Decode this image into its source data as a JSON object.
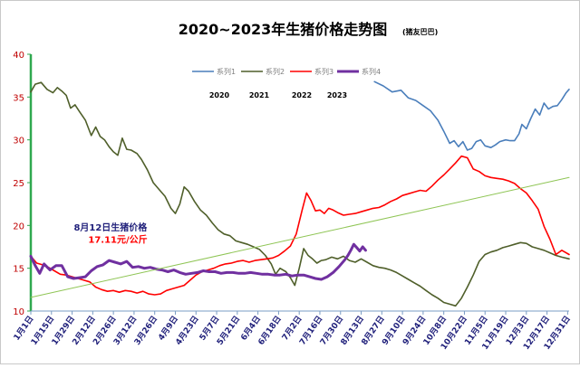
{
  "chart_data": {
    "type": "line",
    "title": "2020~2023年生猪价格走势图",
    "subtitle": "(猪友巴巴)",
    "xlabel": "",
    "ylabel": "",
    "ylim": [
      10,
      40
    ],
    "yticks": [
      "10",
      "15",
      "20",
      "25",
      "30",
      "35",
      "40"
    ],
    "x_unit": "day of year (1 = 1月1日)",
    "xlim": [
      1,
      366
    ],
    "xtick_labels": [
      {
        "label": "1月1日",
        "day": 1
      },
      {
        "label": "1月15日",
        "day": 15
      },
      {
        "label": "1月29日",
        "day": 29
      },
      {
        "label": "2月12日",
        "day": 43
      },
      {
        "label": "2月26日",
        "day": 57
      },
      {
        "label": "3月12日",
        "day": 71
      },
      {
        "label": "3月26日",
        "day": 85
      },
      {
        "label": "4月9日",
        "day": 99
      },
      {
        "label": "4月23日",
        "day": 113
      },
      {
        "label": "5月7日",
        "day": 127
      },
      {
        "label": "5月21日",
        "day": 141
      },
      {
        "label": "6月4日",
        "day": 155
      },
      {
        "label": "6月18日",
        "day": 169
      },
      {
        "label": "7月2日",
        "day": 183
      },
      {
        "label": "7月16日",
        "day": 197
      },
      {
        "label": "7月30日",
        "day": 211
      },
      {
        "label": "8月13日",
        "day": 225
      },
      {
        "label": "8月27日",
        "day": 239
      },
      {
        "label": "9月10日",
        "day": 253
      },
      {
        "label": "9月24日",
        "day": 267
      },
      {
        "label": "10月8日",
        "day": 281
      },
      {
        "label": "10月22日",
        "day": 295
      },
      {
        "label": "11月5日",
        "day": 309
      },
      {
        "label": "11月19日",
        "day": 323
      },
      {
        "label": "12月3日",
        "day": 337
      },
      {
        "label": "12月17日",
        "day": 351
      },
      {
        "label": "12月31日",
        "day": 365
      }
    ],
    "grid": false,
    "legend_position": "top-right",
    "legend_years": [
      "2020",
      "2021",
      "2022",
      "2023"
    ],
    "series": [
      {
        "name": "系列1",
        "color": "#4a7ebb",
        "width": 1.6,
        "x": [
          234,
          240,
          246,
          252,
          257,
          262,
          267,
          272,
          277,
          281,
          285,
          288,
          291,
          294,
          297,
          300,
          303,
          306,
          309,
          313,
          316,
          319,
          323,
          326,
          329,
          332,
          334,
          337,
          340,
          343,
          346,
          349,
          352,
          355,
          358,
          361,
          364,
          366
        ],
        "y": [
          36.8,
          36.3,
          35.6,
          35.8,
          34.9,
          34.6,
          34.0,
          33.4,
          32.3,
          31.0,
          29.6,
          29.9,
          29.2,
          29.8,
          28.8,
          29.0,
          29.8,
          30.0,
          29.3,
          29.1,
          29.4,
          29.8,
          30.0,
          29.9,
          29.9,
          30.7,
          31.8,
          31.3,
          32.5,
          33.6,
          32.9,
          34.3,
          33.6,
          33.9,
          34.0,
          34.7,
          35.5,
          35.9
        ]
      },
      {
        "name": "系列2",
        "color": "#4f5f2a",
        "width": 1.6,
        "x": [
          1,
          4,
          8,
          12,
          16,
          19,
          22,
          25,
          28,
          31,
          34,
          38,
          42,
          45,
          48,
          51,
          54,
          57,
          60,
          63,
          66,
          69,
          73,
          76,
          80,
          84,
          88,
          92,
          96,
          99,
          102,
          105,
          108,
          112,
          116,
          120,
          124,
          128,
          132,
          136,
          140,
          144,
          148,
          152,
          156,
          160,
          164,
          167,
          170,
          174,
          177,
          180,
          183,
          186,
          189,
          192,
          195,
          198,
          201,
          205,
          209,
          213,
          217,
          221,
          225,
          229,
          233,
          237,
          241,
          245,
          249,
          253,
          257,
          261,
          265,
          269,
          273,
          277,
          281,
          285,
          289,
          293,
          297,
          301,
          305,
          309,
          313,
          317,
          321,
          325,
          329,
          333,
          337,
          341,
          345,
          349,
          353,
          357,
          361,
          366
        ],
        "y": [
          35.6,
          36.5,
          36.7,
          35.9,
          35.5,
          36.1,
          35.7,
          35.2,
          33.7,
          34.1,
          33.3,
          32.3,
          30.5,
          31.5,
          30.4,
          30.0,
          29.2,
          28.6,
          28.2,
          30.2,
          28.9,
          28.8,
          28.4,
          27.7,
          26.5,
          25.0,
          24.2,
          23.4,
          22.0,
          21.4,
          22.5,
          24.5,
          24.0,
          22.8,
          21.8,
          21.2,
          20.3,
          19.5,
          19.0,
          18.8,
          18.2,
          18.0,
          17.8,
          17.5,
          17.2,
          16.5,
          15.5,
          14.3,
          15.0,
          14.6,
          13.9,
          13.0,
          15.0,
          17.3,
          16.5,
          16.1,
          15.6,
          15.9,
          16.0,
          16.3,
          16.1,
          16.4,
          15.9,
          15.7,
          16.1,
          15.7,
          15.3,
          15.1,
          15.0,
          14.8,
          14.5,
          14.1,
          13.7,
          13.3,
          12.9,
          12.4,
          11.9,
          11.5,
          11.0,
          10.8,
          10.6,
          11.5,
          12.8,
          14.2,
          15.8,
          16.6,
          16.9,
          17.1,
          17.4,
          17.6,
          17.8,
          18.0,
          17.9,
          17.5,
          17.3,
          17.1,
          16.8,
          16.5,
          16.3,
          16.1
        ]
      },
      {
        "name": "系列3",
        "color": "#ff0000",
        "width": 1.6,
        "x": [
          1,
          5,
          9,
          13,
          17,
          21,
          25,
          29,
          33,
          37,
          41,
          45,
          49,
          53,
          57,
          61,
          65,
          69,
          73,
          77,
          81,
          85,
          89,
          93,
          97,
          101,
          105,
          109,
          113,
          117,
          121,
          125,
          129,
          133,
          137,
          141,
          145,
          149,
          153,
          157,
          161,
          165,
          169,
          173,
          177,
          181,
          185,
          188,
          191,
          194,
          197,
          200,
          203,
          206,
          209,
          213,
          217,
          221,
          225,
          229,
          233,
          237,
          241,
          245,
          249,
          253,
          257,
          261,
          265,
          269,
          273,
          277,
          281,
          285,
          289,
          293,
          297,
          301,
          305,
          309,
          313,
          317,
          321,
          325,
          329,
          333,
          337,
          341,
          345,
          349,
          353,
          357,
          361,
          366
        ],
        "y": [
          16.4,
          15.6,
          15.4,
          15.1,
          14.7,
          14.3,
          14.2,
          14.0,
          13.8,
          13.6,
          13.4,
          12.8,
          12.5,
          12.3,
          12.4,
          12.2,
          12.4,
          12.3,
          12.1,
          12.3,
          12.0,
          11.9,
          12.0,
          12.4,
          12.6,
          12.8,
          13.0,
          13.6,
          14.2,
          14.6,
          14.8,
          15.0,
          15.3,
          15.5,
          15.6,
          15.8,
          15.9,
          15.7,
          15.9,
          16.0,
          16.1,
          16.2,
          16.5,
          17.0,
          17.6,
          19.0,
          21.8,
          23.8,
          22.9,
          21.7,
          21.8,
          21.4,
          22.0,
          21.8,
          21.5,
          21.2,
          21.3,
          21.4,
          21.6,
          21.8,
          22.0,
          22.1,
          22.4,
          22.8,
          23.1,
          23.5,
          23.7,
          23.9,
          24.1,
          24.0,
          24.6,
          25.3,
          25.9,
          26.6,
          27.3,
          28.1,
          27.9,
          26.6,
          26.3,
          25.8,
          25.6,
          25.5,
          25.4,
          25.2,
          24.9,
          24.3,
          23.8,
          22.9,
          21.9,
          19.9,
          18.4,
          16.6,
          17.1,
          16.6
        ]
      },
      {
        "name": "系列4",
        "color": "#7030a0",
        "width": 3,
        "x": [
          1,
          4,
          7,
          10,
          14,
          18,
          22,
          26,
          30,
          34,
          38,
          42,
          46,
          50,
          54,
          58,
          62,
          66,
          70,
          74,
          78,
          82,
          86,
          90,
          94,
          98,
          102,
          106,
          110,
          114,
          118,
          122,
          126,
          130,
          134,
          138,
          142,
          146,
          150,
          154,
          158,
          162,
          166,
          170,
          174,
          178,
          182,
          186,
          190,
          194,
          198,
          202,
          206,
          210,
          214,
          216,
          218,
          220,
          222,
          224,
          226,
          228
        ],
        "y": [
          16.4,
          15.3,
          14.4,
          15.5,
          14.8,
          15.3,
          15.3,
          14.0,
          13.8,
          13.9,
          14.0,
          14.7,
          15.2,
          15.4,
          15.9,
          15.7,
          15.5,
          15.8,
          15.1,
          15.2,
          15.0,
          15.1,
          14.9,
          14.8,
          14.6,
          14.8,
          14.5,
          14.3,
          14.4,
          14.5,
          14.7,
          14.6,
          14.6,
          14.4,
          14.5,
          14.5,
          14.4,
          14.4,
          14.5,
          14.4,
          14.3,
          14.3,
          14.2,
          14.2,
          14.3,
          14.1,
          14.2,
          14.2,
          14.0,
          13.8,
          13.7,
          14.0,
          14.5,
          15.2,
          16.0,
          16.5,
          17.1,
          17.8,
          17.4,
          17.0,
          17.5,
          17.1
        ]
      },
      {
        "name": "",
        "color": "#8fc555",
        "width": 1,
        "x": [
          1,
          366
        ],
        "y": [
          11.6,
          25.6
        ]
      }
    ],
    "annotations": [
      {
        "text": "8月12日生猪价格",
        "x": 55,
        "y": 19.4,
        "color": "#1f1f7a"
      },
      {
        "text": "17.11元/公斤",
        "x": 60,
        "y": 18.0,
        "color": "#ff0000"
      }
    ]
  }
}
